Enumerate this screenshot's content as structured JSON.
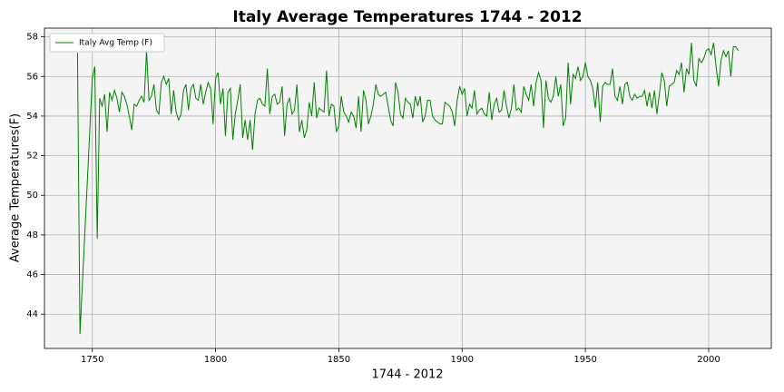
{
  "chart_data": {
    "type": "line",
    "title": "Italy Average Temperatures 1744 - 2012",
    "xlabel": "1744 - 2012",
    "ylabel": "Average Temperatures(F)",
    "x": [
      1744,
      1745,
      1750,
      1751,
      1752,
      1753,
      1754,
      1755,
      1756,
      1757,
      1758,
      1759,
      1760,
      1761,
      1762,
      1763,
      1764,
      1765,
      1766,
      1767,
      1768,
      1769,
      1770,
      1771,
      1772,
      1773,
      1774,
      1775,
      1776,
      1777,
      1778,
      1779,
      1780,
      1781,
      1782,
      1783,
      1784,
      1785,
      1786,
      1787,
      1788,
      1789,
      1790,
      1791,
      1792,
      1793,
      1794,
      1795,
      1796,
      1797,
      1798,
      1799,
      1800,
      1801,
      1802,
      1803,
      1804,
      1805,
      1806,
      1807,
      1808,
      1809,
      1810,
      1811,
      1812,
      1813,
      1814,
      1815,
      1816,
      1817,
      1818,
      1819,
      1820,
      1821,
      1822,
      1823,
      1824,
      1825,
      1826,
      1827,
      1828,
      1829,
      1830,
      1831,
      1832,
      1833,
      1834,
      1835,
      1836,
      1837,
      1838,
      1839,
      1840,
      1841,
      1842,
      1843,
      1844,
      1845,
      1846,
      1847,
      1848,
      1849,
      1850,
      1851,
      1852,
      1853,
      1854,
      1855,
      1856,
      1857,
      1858,
      1859,
      1860,
      1861,
      1862,
      1863,
      1864,
      1865,
      1866,
      1867,
      1868,
      1869,
      1870,
      1871,
      1872,
      1873,
      1874,
      1875,
      1876,
      1877,
      1878,
      1879,
      1880,
      1881,
      1882,
      1883,
      1884,
      1885,
      1886,
      1887,
      1888,
      1889,
      1890,
      1891,
      1892,
      1893,
      1894,
      1895,
      1896,
      1897,
      1898,
      1899,
      1900,
      1901,
      1902,
      1903,
      1904,
      1905,
      1906,
      1907,
      1908,
      1909,
      1910,
      1911,
      1912,
      1913,
      1914,
      1915,
      1916,
      1917,
      1918,
      1919,
      1920,
      1921,
      1922,
      1923,
      1924,
      1925,
      1926,
      1927,
      1928,
      1929,
      1930,
      1931,
      1932,
      1933,
      1934,
      1935,
      1936,
      1937,
      1938,
      1939,
      1940,
      1941,
      1942,
      1943,
      1944,
      1945,
      1946,
      1947,
      1948,
      1949,
      1950,
      1951,
      1952,
      1953,
      1954,
      1955,
      1956,
      1957,
      1958,
      1959,
      1960,
      1961,
      1962,
      1963,
      1964,
      1965,
      1966,
      1967,
      1968,
      1969,
      1970,
      1971,
      1972,
      1973,
      1974,
      1975,
      1976,
      1977,
      1978,
      1979,
      1980,
      1981,
      1982,
      1983,
      1984,
      1985,
      1986,
      1987,
      1988,
      1989,
      1990,
      1991,
      1992,
      1993,
      1994,
      1995,
      1996,
      1997,
      1998,
      1999,
      2000,
      2001,
      2002,
      2003,
      2004,
      2005,
      2006,
      2007,
      2008,
      2009,
      2010,
      2011,
      2012
    ],
    "series": [
      {
        "name": "Italy Avg Temp (F)",
        "color": "#008000",
        "values": [
          57.2,
          43.0,
          55.9,
          56.5,
          47.8,
          54.9,
          54.5,
          55.1,
          53.2,
          55.2,
          54.8,
          55.3,
          54.9,
          54.2,
          55.2,
          55.0,
          54.6,
          54.0,
          53.3,
          54.6,
          54.5,
          54.8,
          55.0,
          54.7,
          57.3,
          54.8,
          55.0,
          55.6,
          54.3,
          54.1,
          55.7,
          56.0,
          55.6,
          55.9,
          54.1,
          55.3,
          54.2,
          53.8,
          54.1,
          55.3,
          55.6,
          54.3,
          55.4,
          55.6,
          54.9,
          54.8,
          55.6,
          54.6,
          55.2,
          55.7,
          55.4,
          53.6,
          55.9,
          56.2,
          54.6,
          55.4,
          53.0,
          55.2,
          55.4,
          52.8,
          54.1,
          54.8,
          55.6,
          52.9,
          53.8,
          52.8,
          53.8,
          52.3,
          54.1,
          54.8,
          54.9,
          54.6,
          54.5,
          56.4,
          54.1,
          55.0,
          55.1,
          54.6,
          54.7,
          55.5,
          53.0,
          54.6,
          54.9,
          54.1,
          54.3,
          55.6,
          53.2,
          53.8,
          52.9,
          53.3,
          54.7,
          54.0,
          55.7,
          53.9,
          54.4,
          54.3,
          54.2,
          56.3,
          54.0,
          54.6,
          54.5,
          53.2,
          53.5,
          55.0,
          54.2,
          54.0,
          53.7,
          54.2,
          54.0,
          53.4,
          55.0,
          53.2,
          55.3,
          54.8,
          53.6,
          54.0,
          54.6,
          55.6,
          55.1,
          55.0,
          55.1,
          55.2,
          54.5,
          53.8,
          53.5,
          55.7,
          55.2,
          54.1,
          53.9,
          54.9,
          54.7,
          54.6,
          53.9,
          55.0,
          54.5,
          55.0,
          53.7,
          54.0,
          54.8,
          54.8,
          54.0,
          53.8,
          53.7,
          53.6,
          53.6,
          54.7,
          54.6,
          54.5,
          54.2,
          53.5,
          54.8,
          55.5,
          55.1,
          55.4,
          54.0,
          54.6,
          54.4,
          55.3,
          54.1,
          54.3,
          54.4,
          54.1,
          54.0,
          55.2,
          53.8,
          54.6,
          54.9,
          54.2,
          54.3,
          55.3,
          54.5,
          53.9,
          54.4,
          55.6,
          54.3,
          54.4,
          54.2,
          55.5,
          55.1,
          54.8,
          55.6,
          54.5,
          55.7,
          56.2,
          55.8,
          53.4,
          55.8,
          54.9,
          54.7,
          55.0,
          56.0,
          55.0,
          55.6,
          53.5,
          53.9,
          56.7,
          54.6,
          56.1,
          55.9,
          56.5,
          55.8,
          56.0,
          56.7,
          56.0,
          55.8,
          55.4,
          54.4,
          55.7,
          53.7,
          55.5,
          55.7,
          55.6,
          55.6,
          56.4,
          55.0,
          54.8,
          55.5,
          54.6,
          55.6,
          55.7,
          55.0,
          54.8,
          55.1,
          54.9,
          55.0,
          55.0,
          55.3,
          54.5,
          55.2,
          54.4,
          55.3,
          54.1,
          55.1,
          56.2,
          55.8,
          54.5,
          55.5,
          55.6,
          55.7,
          56.3,
          56.1,
          56.7,
          55.2,
          56.4,
          56.1,
          57.7,
          55.8,
          55.5,
          56.9,
          56.7,
          56.9,
          57.3,
          57.4,
          57.1,
          57.7,
          56.5,
          55.5,
          56.8,
          57.3,
          57.0,
          57.3,
          56.0,
          57.5,
          57.5,
          57.3
        ]
      }
    ],
    "xlim": [
      1730.6,
      2025.4
    ],
    "xticks": [
      1750,
      1800,
      1850,
      1900,
      1950,
      2000
    ],
    "ylim": [
      42.27,
      58.44
    ],
    "yticks": [
      44,
      46,
      48,
      50,
      52,
      54,
      56,
      58
    ],
    "grid": true,
    "legend": "upper left"
  }
}
